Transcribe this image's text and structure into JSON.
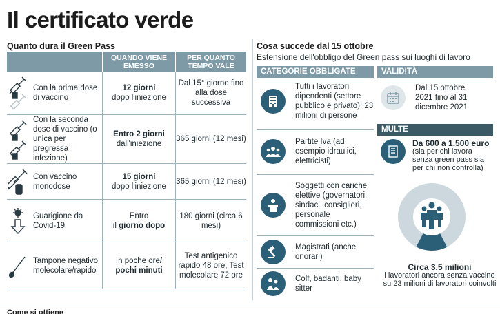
{
  "title": "Il certificato verde",
  "left": {
    "heading": "Quanto dura il Green Pass",
    "col_when": "QUANDO VIENE EMESSO",
    "col_how_long": "PER QUANTO TEMPO VALE",
    "rows": [
      {
        "label": "Con la prima dose di vaccino",
        "when_bold": "12 giorni",
        "when_rest": "dopo l'iniezione",
        "validity": "Dal 15° giorno fino alla dose successiva"
      },
      {
        "label": "Con la seconda dose di vaccino (o unica per pregressa infezione)",
        "when_bold": "Entro 2 giorni",
        "when_rest": "dall'iniezione",
        "validity": "365 giorni (12 mesi)"
      },
      {
        "label": "Con vaccino monodose",
        "when_bold": "15 giorni",
        "when_rest": "dopo l'iniezione",
        "validity": "365 giorni (12 mesi)"
      },
      {
        "label": "Guarigione da Covid-19",
        "when_pre": "Entro",
        "when_mid": "il",
        "when_bold": "giorno dopo",
        "validity": "180 giorni (circa 6 mesi)"
      },
      {
        "label": "Tampone negativo molecolare/rapido",
        "when_pre": "In poche ore/",
        "when_bold": "pochi minuti",
        "validity": "Test antigenico rapido 48 ore, Test molecolare 72 ore"
      }
    ]
  },
  "right": {
    "heading": "Cosa succede dal 15 ottobre",
    "subheading": "Estensione dell'obbligo del Green pass sui luoghi di lavoro",
    "categories_title": "CATEGORIE OBBLIGATE",
    "categories": [
      {
        "icon": "building-icon",
        "text": "Tutti i lavoratori dipendenti (settore pubblico e privato): 23 milioni di persone"
      },
      {
        "icon": "group-icon",
        "text": "Partite Iva (ad esempio idraulici, elettricisti)"
      },
      {
        "icon": "podium-icon",
        "text": "Soggetti con cariche elettive (governatori, sindaci, consiglieri, personale commissioni etc.)"
      },
      {
        "icon": "gavel-icon",
        "text": "Magistrati (anche onorari)"
      },
      {
        "icon": "caregivers-icon",
        "text": "Colf, badanti, baby sitter"
      }
    ],
    "validity_title": "VALIDITÀ",
    "validity_text": "Dal 15 ottobre 2021 fino al 31 dicembre 2021",
    "fines_title": "MULTE",
    "fines_amount": "Da 600 a 1.500 euro",
    "fines_text": "(sia per chi lavora senza green pass sia per chi non controlla)",
    "unvaccinated_share": 0.152,
    "unvaccinated_big": "Circa 3,5 milioni",
    "unvaccinated_text": "i lavoratori ancora senza vaccino  su 23 milioni di lavoratori coinvolti"
  },
  "footer": {
    "text": "Come si ottiene"
  },
  "colors": {
    "header_blue": "#7e9aa6",
    "dark_blue": "#3c5966",
    "icon_circle": "#2b5f77",
    "donut_light": "#ccd8dd"
  }
}
